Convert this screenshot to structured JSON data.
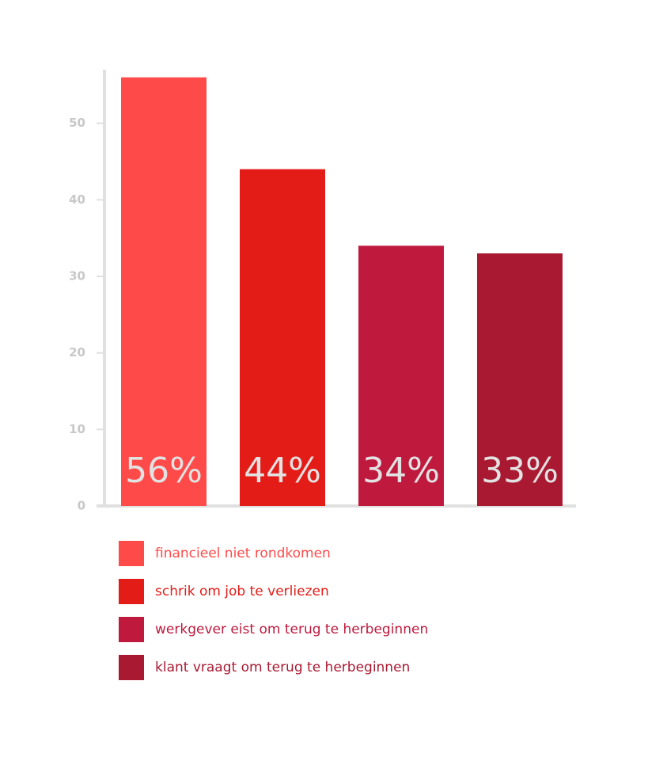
{
  "chart_data": {
    "type": "bar",
    "categories": [
      "financieel niet rondkomen",
      "schrik om job te verliezen",
      "werkgever eist om terug te herbeginnen",
      "klant vraagt om terug te herbeginnen"
    ],
    "values": [
      56,
      44,
      34,
      33
    ],
    "value_labels": [
      "56%",
      "44%",
      "34%",
      "33%"
    ],
    "colors": [
      "#ff4a4a",
      "#e31c17",
      "#bf1a3e",
      "#a91a32"
    ],
    "ylim": [
      0,
      57
    ],
    "yticks": [
      0,
      10,
      20,
      30,
      40,
      50
    ],
    "grid": false
  }
}
